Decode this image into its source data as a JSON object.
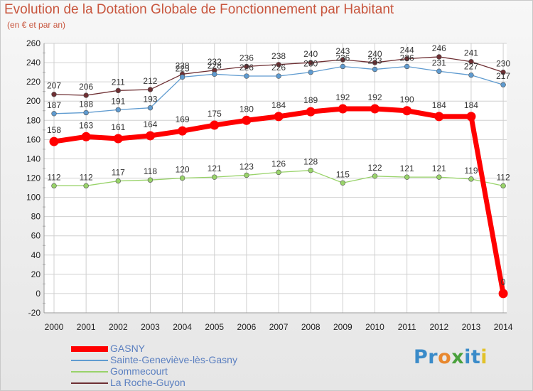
{
  "header": {
    "title": "Evolution de la Dotation Globale de Fonctionnement par Habitant",
    "subtitle": "(en € et par an)"
  },
  "logo": {
    "text": "Proxiti",
    "letters": [
      {
        "ch": "P",
        "color": "#3a8bc9"
      },
      {
        "ch": "r",
        "color": "#3a8bc9"
      },
      {
        "ch": "o",
        "color": "#e8882f"
      },
      {
        "ch": "x",
        "color": "#4aa13c"
      },
      {
        "ch": "i",
        "color": "#3a8bc9"
      },
      {
        "ch": "t",
        "color": "#3a8bc9"
      },
      {
        "ch": "i",
        "color": "#e2c22a"
      }
    ]
  },
  "chart_data": {
    "type": "line",
    "title": "Evolution de la Dotation Globale de Fonctionnement par Habitant",
    "subtitle": "(en € et par an)",
    "xlabel": "",
    "ylabel": "",
    "ylim": [
      -20,
      260
    ],
    "yticks": [
      -20,
      0,
      20,
      40,
      60,
      80,
      100,
      120,
      140,
      160,
      180,
      200,
      220,
      240,
      260
    ],
    "grid": true,
    "legend_position": "bottom-left",
    "categories": [
      "2000",
      "2001",
      "2002",
      "2003",
      "2004",
      "2005",
      "2006",
      "2007",
      "2008",
      "2009",
      "2010",
      "2011",
      "2012",
      "2013",
      "2014"
    ],
    "series": [
      {
        "name": "La Roche-Guyon",
        "color": "#6e2f33",
        "values": [
          207,
          206,
          211,
          212,
          228,
          232,
          236,
          238,
          240,
          243,
          240,
          244,
          246,
          241,
          230
        ]
      },
      {
        "name": "Sainte-Geneviève-lès-Gasny",
        "color": "#5f9bd0",
        "values": [
          187,
          188,
          191,
          193,
          225,
          228,
          226,
          226,
          230,
          236,
          233,
          236,
          231,
          227,
          217
        ]
      },
      {
        "name": "Gommecourt",
        "color": "#99d36a",
        "values": [
          112,
          112,
          117,
          118,
          120,
          121,
          123,
          126,
          128,
          115,
          122,
          121,
          121,
          119,
          112
        ]
      },
      {
        "name": "GASNY",
        "color": "#ff0000",
        "values": [
          158,
          163,
          161,
          164,
          169,
          175,
          180,
          184,
          189,
          192,
          192,
          190,
          184,
          184,
          0
        ]
      }
    ],
    "legend": [
      "GASNY",
      "Sainte-Geneviève-lès-Gasny",
      "Gommecourt",
      "La Roche-Guyon"
    ]
  }
}
